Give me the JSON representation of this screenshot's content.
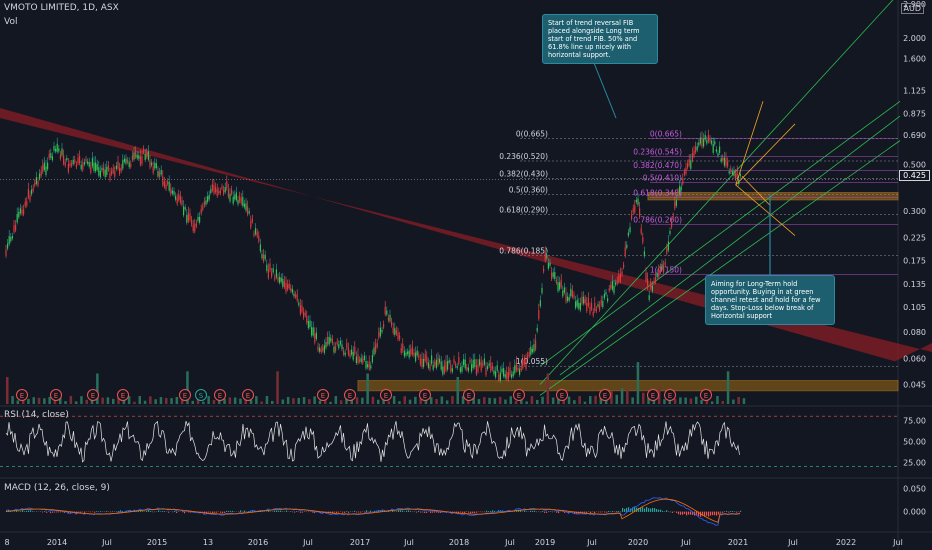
{
  "header": {
    "symbol_line": "VMOTO LIMITED, 1D, ASX",
    "volume_label": "Vol",
    "currency": "AUD",
    "last_price": "0.425"
  },
  "rsi_label": "RSI (14, close)",
  "macd_label": "MACD (12, 26, close, 9)",
  "annotations": {
    "top_note": "Start of trend reversal FIB placed alongside Long term start of trend FIB. 50% and 61.8% line up nicely with horizontal support.",
    "bottom_note": "Aiming for Long-Term hold opportunity. Buying in at green channel retest and hold for a few days. Stop-Loss below break of Horizontal support"
  },
  "fib_long": [
    {
      "label": "0(0.665)",
      "value": 0.665
    },
    {
      "label": "0.236(0.520)",
      "value": 0.52
    },
    {
      "label": "0.382(0.430)",
      "value": 0.43
    },
    {
      "label": "0.5(0.360)",
      "value": 0.36
    },
    {
      "label": "0.618(0.290)",
      "value": 0.29
    },
    {
      "label": "0.786(0.185)",
      "value": 0.185
    },
    {
      "label": "1(0.055)",
      "value": 0.055
    }
  ],
  "fib_short": [
    {
      "label": "0(0.665)",
      "value": 0.665
    },
    {
      "label": "0.236(0.545)",
      "value": 0.545
    },
    {
      "label": "0.382(0.470)",
      "value": 0.47
    },
    {
      "label": "0.5(0.410)",
      "value": 0.41
    },
    {
      "label": "0.618(0.348)",
      "value": 0.348
    },
    {
      "label": "0.786(0.260)",
      "value": 0.26
    },
    {
      "label": "1(0.150)",
      "value": 0.15
    }
  ],
  "event_markers": [
    "E",
    "E",
    "E",
    "E",
    "E",
    "E",
    "S",
    "E",
    "E",
    "E",
    "E",
    "E",
    "E",
    "E",
    "E",
    "E",
    "E",
    "E",
    "E",
    "E",
    "E",
    "E",
    "E",
    "E"
  ],
  "chart_data": [
    {
      "type": "line",
      "name": "price",
      "y_scale": "log",
      "ylim": [
        0.038,
        2.9
      ],
      "price_ticks": [
        "2.900",
        "2.000",
        "1.600",
        "1.125",
        "0.875",
        "0.690",
        "0.500",
        "0.425",
        "0.300",
        "0.225",
        "0.175",
        "0.135",
        "0.105",
        "0.080",
        "0.060",
        "0.045"
      ],
      "x_ticks": [
        "8",
        "2014",
        "Jul",
        "2015",
        "13",
        "2016",
        "Jul",
        "2017",
        "Jul",
        "2018",
        "Jul",
        "2019",
        "Jul",
        "2020",
        "Jul",
        "2021",
        "Jul",
        "2022",
        "Jul"
      ],
      "x": [
        2013.85,
        2014.0,
        2014.15,
        2014.35,
        2014.45,
        2014.65,
        2014.85,
        2015.0,
        2015.2,
        2015.35,
        2015.5,
        2015.7,
        2015.85,
        2016.0,
        2016.2,
        2016.4,
        2016.55,
        2016.75,
        2016.9,
        2017.0,
        2017.2,
        2017.4,
        2017.55,
        2017.7,
        2017.9,
        2018.1,
        2018.3,
        2018.5,
        2018.7,
        2018.9,
        2019.0,
        2019.1,
        2019.2,
        2019.3,
        2019.45,
        2019.6,
        2019.75,
        2019.85,
        2019.95,
        2020.0,
        2020.1,
        2020.2,
        2020.25,
        2020.35,
        2020.45,
        2020.55,
        2020.65,
        2020.75,
        2020.85,
        2020.95,
        2021.0
      ],
      "close": [
        0.19,
        0.3,
        0.42,
        0.6,
        0.5,
        0.5,
        0.46,
        0.5,
        0.56,
        0.45,
        0.35,
        0.25,
        0.38,
        0.38,
        0.3,
        0.16,
        0.14,
        0.1,
        0.068,
        0.07,
        0.065,
        0.055,
        0.1,
        0.068,
        0.058,
        0.055,
        0.056,
        0.055,
        0.05,
        0.055,
        0.07,
        0.18,
        0.14,
        0.12,
        0.11,
        0.1,
        0.13,
        0.16,
        0.3,
        0.34,
        0.12,
        0.15,
        0.16,
        0.3,
        0.45,
        0.58,
        0.66,
        0.6,
        0.52,
        0.43,
        0.425
      ]
    },
    {
      "type": "line",
      "name": "RSI",
      "ylim": [
        10,
        85
      ],
      "ticks": [
        "75.00",
        "50.00",
        "25.00"
      ]
    },
    {
      "type": "line",
      "name": "MACD",
      "ylim": [
        -0.04,
        0.06
      ],
      "ticks": [
        "0.050",
        "0.000"
      ]
    }
  ]
}
